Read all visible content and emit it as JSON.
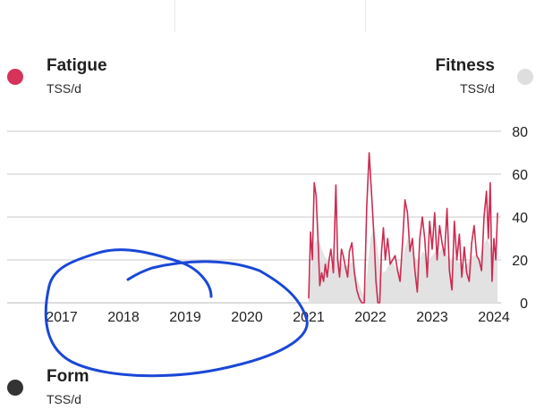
{
  "legend": {
    "fatigue": {
      "title": "Fatigue",
      "unit": "TSS/d",
      "color": "#d6335a"
    },
    "fitness": {
      "title": "Fitness",
      "unit": "TSS/d",
      "color": "#dedede"
    },
    "form": {
      "title": "Form",
      "unit": "TSS/d",
      "color": "#333333"
    }
  },
  "colors": {
    "fatigue_line": "#cc2c52",
    "fitness_fill": "#e2e2e2",
    "annotation": "#1a47d6",
    "grid": "#c8c8c8"
  },
  "chart_data": {
    "type": "line",
    "x_tick_labels": [
      "2017",
      "2018",
      "2019",
      "2020",
      "2021",
      "2022",
      "2023",
      "2024"
    ],
    "y_tick_labels": [
      "80",
      "60",
      "40",
      "20",
      "0"
    ],
    "xlim": [
      2016.9,
      2024.1
    ],
    "ylim": [
      0,
      80
    ],
    "grid": true,
    "series": [
      {
        "name": "Fatigue",
        "kind": "line",
        "x": [
          2021.0,
          2021.03,
          2021.06,
          2021.09,
          2021.12,
          2021.15,
          2021.18,
          2021.21,
          2021.24,
          2021.27,
          2021.3,
          2021.33,
          2021.36,
          2021.4,
          2021.44,
          2021.47,
          2021.5,
          2021.53,
          2021.56,
          2021.6,
          2021.63,
          2021.66,
          2021.7,
          2021.74,
          2021.78,
          2021.82,
          2021.86,
          2021.9,
          2021.94,
          2021.98,
          2022.02,
          2022.06,
          2022.09,
          2022.12,
          2022.15,
          2022.18,
          2022.21,
          2022.24,
          2022.28,
          2022.32,
          2022.36,
          2022.4,
          2022.44,
          2022.48,
          2022.52,
          2022.56,
          2022.6,
          2022.64,
          2022.68,
          2022.72,
          2022.76,
          2022.8,
          2022.84,
          2022.88,
          2022.92,
          2022.96,
          2023.0,
          2023.04,
          2023.08,
          2023.12,
          2023.16,
          2023.2,
          2023.24,
          2023.28,
          2023.32,
          2023.36,
          2023.4,
          2023.44,
          2023.48,
          2023.52,
          2023.56,
          2023.6,
          2023.64,
          2023.68,
          2023.72,
          2023.76,
          2023.8,
          2023.84,
          2023.88,
          2023.91,
          2023.94,
          2023.97,
          2024.0,
          2024.03,
          2024.06
        ],
        "y": [
          2,
          33,
          20,
          56,
          50,
          30,
          8,
          14,
          10,
          18,
          12,
          20,
          25,
          14,
          55,
          20,
          12,
          25,
          22,
          16,
          12,
          24,
          28,
          14,
          6,
          2,
          0,
          0,
          45,
          70,
          50,
          30,
          10,
          0,
          0,
          24,
          35,
          20,
          30,
          18,
          20,
          22,
          15,
          10,
          28,
          48,
          42,
          24,
          30,
          15,
          5,
          30,
          40,
          30,
          12,
          38,
          25,
          42,
          20,
          36,
          28,
          22,
          44,
          15,
          6,
          38,
          20,
          32,
          12,
          26,
          14,
          10,
          28,
          36,
          22,
          20,
          15,
          40,
          52,
          30,
          56,
          10,
          30,
          20,
          42
        ]
      },
      {
        "name": "Fitness",
        "kind": "area",
        "x": [
          2021.0,
          2021.05,
          2021.1,
          2021.15,
          2021.2,
          2021.25,
          2021.3,
          2021.35,
          2021.4,
          2021.45,
          2021.5,
          2021.55,
          2021.6,
          2021.65,
          2021.7,
          2021.75,
          2021.8,
          2021.85,
          2021.9,
          2021.95,
          2022.0,
          2022.05,
          2022.1,
          2022.15,
          2022.2,
          2022.25,
          2022.3,
          2022.35,
          2022.4,
          2022.45,
          2022.5,
          2022.55,
          2022.6,
          2022.65,
          2022.7,
          2022.75,
          2022.8,
          2022.85,
          2022.9,
          2022.95,
          2023.0,
          2023.05,
          2023.1,
          2023.15,
          2023.2,
          2023.25,
          2023.3,
          2023.35,
          2023.4,
          2023.45,
          2023.5,
          2023.55,
          2023.6,
          2023.65,
          2023.7,
          2023.75,
          2023.8,
          2023.85,
          2023.9,
          2023.95,
          2024.0,
          2024.06
        ],
        "y": [
          5,
          18,
          28,
          30,
          26,
          22,
          20,
          18,
          16,
          22,
          20,
          18,
          17,
          18,
          19,
          15,
          10,
          6,
          3,
          15,
          30,
          35,
          28,
          18,
          14,
          15,
          18,
          20,
          17,
          15,
          18,
          24,
          30,
          26,
          22,
          20,
          21,
          24,
          22,
          20,
          22,
          24,
          23,
          25,
          24,
          22,
          20,
          22,
          20,
          18,
          18,
          17,
          20,
          22,
          22,
          20,
          24,
          28,
          30,
          25,
          22,
          24
        ]
      }
    ]
  }
}
